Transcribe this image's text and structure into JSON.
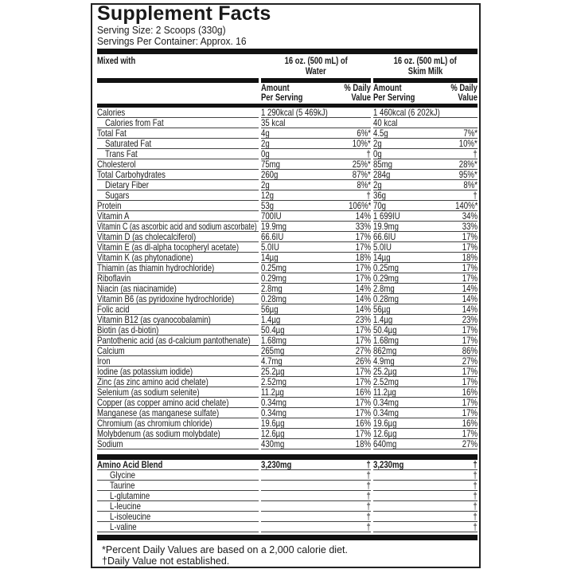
{
  "title": "Supplement Facts",
  "serving_size": "Serving Size: 2 Scoops (330g)",
  "servings_per_container": "Servings Per Container: Approx. 16",
  "header": {
    "mixed_with": "Mixed with",
    "water_col": [
      "16 oz. (500 mL) of",
      "Water"
    ],
    "milk_col": [
      "16 oz. (500 mL) of",
      "Skim Milk"
    ],
    "amount": [
      "Amount",
      "Per Serving"
    ],
    "dv": [
      "% Daily",
      "Value"
    ]
  },
  "nutrients": [
    {
      "label": "Calories",
      "indent": 0,
      "w": "1 290kcal (5 469kJ)",
      "wdv": "",
      "m": "1 460kcal (6 202kJ)",
      "mdv": ""
    },
    {
      "label": "Calories from Fat",
      "indent": 1,
      "w": "35 kcal",
      "wdv": "",
      "m": "40 kcal",
      "mdv": ""
    },
    {
      "label": "Total Fat",
      "indent": 0,
      "w": "4g",
      "wdv": "6%*",
      "m": "4.5g",
      "mdv": "7%*"
    },
    {
      "label": "Saturated Fat",
      "indent": 1,
      "w": "2g",
      "wdv": "10%*",
      "m": "2g",
      "mdv": "10%*"
    },
    {
      "label": "Trans Fat",
      "indent": 1,
      "w": "0g",
      "wdv": "†",
      "m": "0g",
      "mdv": "†"
    },
    {
      "label": "Cholesterol",
      "indent": 0,
      "w": "75mg",
      "wdv": "25%*",
      "m": "85mg",
      "mdv": "28%*"
    },
    {
      "label": "Total Carbohydrates",
      "indent": 0,
      "w": "260g",
      "wdv": "87%*",
      "m": "284g",
      "mdv": "95%*"
    },
    {
      "label": "Dietary Fiber",
      "indent": 1,
      "w": "2g",
      "wdv": "8%*",
      "m": "2g",
      "mdv": "8%*"
    },
    {
      "label": "Sugars",
      "indent": 1,
      "w": "12g",
      "wdv": "†",
      "m": "36g",
      "mdv": "†"
    },
    {
      "label": "Protein",
      "indent": 0,
      "w": "53g",
      "wdv": "106%*",
      "m": "70g",
      "mdv": "140%*"
    },
    {
      "label": "Vitamin A",
      "indent": 0,
      "w": "700IU",
      "wdv": "14%",
      "m": "1 699IU",
      "mdv": "34%"
    },
    {
      "label": "Vitamin C (as ascorbic acid and sodium ascorbate)",
      "indent": 0,
      "w": "19.9mg",
      "wdv": "33%",
      "m": "19.9mg",
      "mdv": "33%"
    },
    {
      "label": "Vitamin D (as cholecalciferol)",
      "indent": 0,
      "w": "66.6IU",
      "wdv": "17%",
      "m": "66.6IU",
      "mdv": "17%"
    },
    {
      "label": "Vitamin E (as dl-alpha tocopheryl acetate)",
      "indent": 0,
      "w": "5.0IU",
      "wdv": "17%",
      "m": "5.0IU",
      "mdv": "17%"
    },
    {
      "label": "Vitamin K (as phytonadione)",
      "indent": 0,
      "w": "14µg",
      "wdv": "18%",
      "m": "14µg",
      "mdv": "18%"
    },
    {
      "label": "Thiamin (as thiamin hydrochloride)",
      "indent": 0,
      "w": "0.25mg",
      "wdv": "17%",
      "m": "0.25mg",
      "mdv": "17%"
    },
    {
      "label": "Riboflavin",
      "indent": 0,
      "w": "0.29mg",
      "wdv": "17%",
      "m": "0.29mg",
      "mdv": "17%"
    },
    {
      "label": "Niacin (as niacinamide)",
      "indent": 0,
      "w": "2.8mg",
      "wdv": "14%",
      "m": "2.8mg",
      "mdv": "14%"
    },
    {
      "label": "Vitamin B6 (as pyridoxine hydrochloride)",
      "indent": 0,
      "w": "0.28mg",
      "wdv": "14%",
      "m": "0.28mg",
      "mdv": "14%"
    },
    {
      "label": "Folic acid",
      "indent": 0,
      "w": "56µg",
      "wdv": "14%",
      "m": "56µg",
      "mdv": "14%"
    },
    {
      "label": "Vitamin B12 (as cyanocobalamin)",
      "indent": 0,
      "w": "1.4µg",
      "wdv": "23%",
      "m": "1.4µg",
      "mdv": "23%"
    },
    {
      "label": "Biotin (as d-biotin)",
      "indent": 0,
      "w": "50.4µg",
      "wdv": "17%",
      "m": "50.4µg",
      "mdv": "17%"
    },
    {
      "label": "Pantothenic acid (as d-calcium pantothenate)",
      "indent": 0,
      "w": "1.68mg",
      "wdv": "17%",
      "m": "1.68mg",
      "mdv": "17%"
    },
    {
      "label": "Calcium",
      "indent": 0,
      "w": "265mg",
      "wdv": "27%",
      "m": "862mg",
      "mdv": "86%"
    },
    {
      "label": "Iron",
      "indent": 0,
      "w": "4.7mg",
      "wdv": "26%",
      "m": "4.9mg",
      "mdv": "27%"
    },
    {
      "label": "Iodine (as potassium iodide)",
      "indent": 0,
      "w": "25.2µg",
      "wdv": "17%",
      "m": "25.2µg",
      "mdv": "17%"
    },
    {
      "label": "Zinc (as zinc amino acid chelate)",
      "indent": 0,
      "w": "2.52mg",
      "wdv": "17%",
      "m": "2.52mg",
      "mdv": "17%"
    },
    {
      "label": "Selenium (as sodium selenite)",
      "indent": 0,
      "w": "11.2µg",
      "wdv": "16%",
      "m": "11.2µg",
      "mdv": "16%"
    },
    {
      "label": "Copper (as copper amino acid chelate)",
      "indent": 0,
      "w": "0.34mg",
      "wdv": "17%",
      "m": "0.34mg",
      "mdv": "17%"
    },
    {
      "label": "Manganese (as manganese sulfate)",
      "indent": 0,
      "w": "0.34mg",
      "wdv": "17%",
      "m": "0.34mg",
      "mdv": "17%"
    },
    {
      "label": "Chromium (as chromium chloride)",
      "indent": 0,
      "w": "19.6µg",
      "wdv": "16%",
      "m": "19.6µg",
      "mdv": "16%"
    },
    {
      "label": "Molybdenum (as sodium molybdate)",
      "indent": 0,
      "w": "12.6µg",
      "wdv": "17%",
      "m": "12.6µg",
      "mdv": "17%"
    },
    {
      "label": "Sodium",
      "indent": 0,
      "w": "430mg",
      "wdv": "18%",
      "m": "640mg",
      "mdv": "27%"
    }
  ],
  "amino": [
    {
      "label": "Amino Acid Blend",
      "indent": 0,
      "bold": true,
      "w": "3,230mg",
      "wdv": "†",
      "m": "3,230mg",
      "mdv": "†"
    },
    {
      "label": "Glycine",
      "indent": 2,
      "w": "",
      "wdv": "†",
      "m": "",
      "mdv": "†"
    },
    {
      "label": "Taurine",
      "indent": 2,
      "w": "",
      "wdv": "†",
      "m": "",
      "mdv": "†"
    },
    {
      "label": "L-glutamine",
      "indent": 2,
      "w": "",
      "wdv": "†",
      "m": "",
      "mdv": "†"
    },
    {
      "label": "L-leucine",
      "indent": 2,
      "w": "",
      "wdv": "†",
      "m": "",
      "mdv": "†"
    },
    {
      "label": "L-isoleucine",
      "indent": 2,
      "w": "",
      "wdv": "†",
      "m": "",
      "mdv": "†"
    },
    {
      "label": "L-valine",
      "indent": 2,
      "w": "",
      "wdv": "†",
      "m": "",
      "mdv": "†"
    }
  ],
  "footnotes": [
    "*Percent Daily Values are based on a 2,000 calorie diet.",
    "†Daily Value not established."
  ]
}
